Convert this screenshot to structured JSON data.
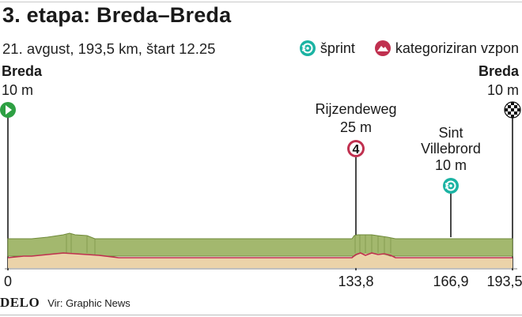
{
  "title": "3. etapa: Breda–Breda",
  "subtitle": "21. avgust, 193,5 km, štart 12.25",
  "legend": {
    "sprint": "šprint",
    "climb": "kategoriziran vzpon"
  },
  "points": {
    "start": {
      "name": "Breda",
      "elev": "10 m",
      "icon": "start-play-icon"
    },
    "finish": {
      "name": "Breda",
      "elev": "10 m",
      "icon": "checkered-finish-icon"
    },
    "climb": {
      "name": "Rijzendeweg",
      "elev": "25 m",
      "category": "4",
      "icon": "climb-icon"
    },
    "sprint": {
      "name_line1": "Sint",
      "name_line2": "Villebrord",
      "elev": "10 m",
      "icon": "sprint-icon"
    }
  },
  "distances": [
    "0",
    "133,8",
    "166,9",
    "193,5"
  ],
  "footer": {
    "brand": "DELO",
    "source": "Vir: Graphic News"
  },
  "colors": {
    "profile_green": "#a3b86e",
    "profile_dark": "#6f8a3a",
    "profile_tan": "#ebd3a9",
    "road_red": "#c0304f",
    "sprint_teal": "#1bb3a3",
    "climb_red": "#c0304f",
    "start_green": "#2ea043"
  }
}
